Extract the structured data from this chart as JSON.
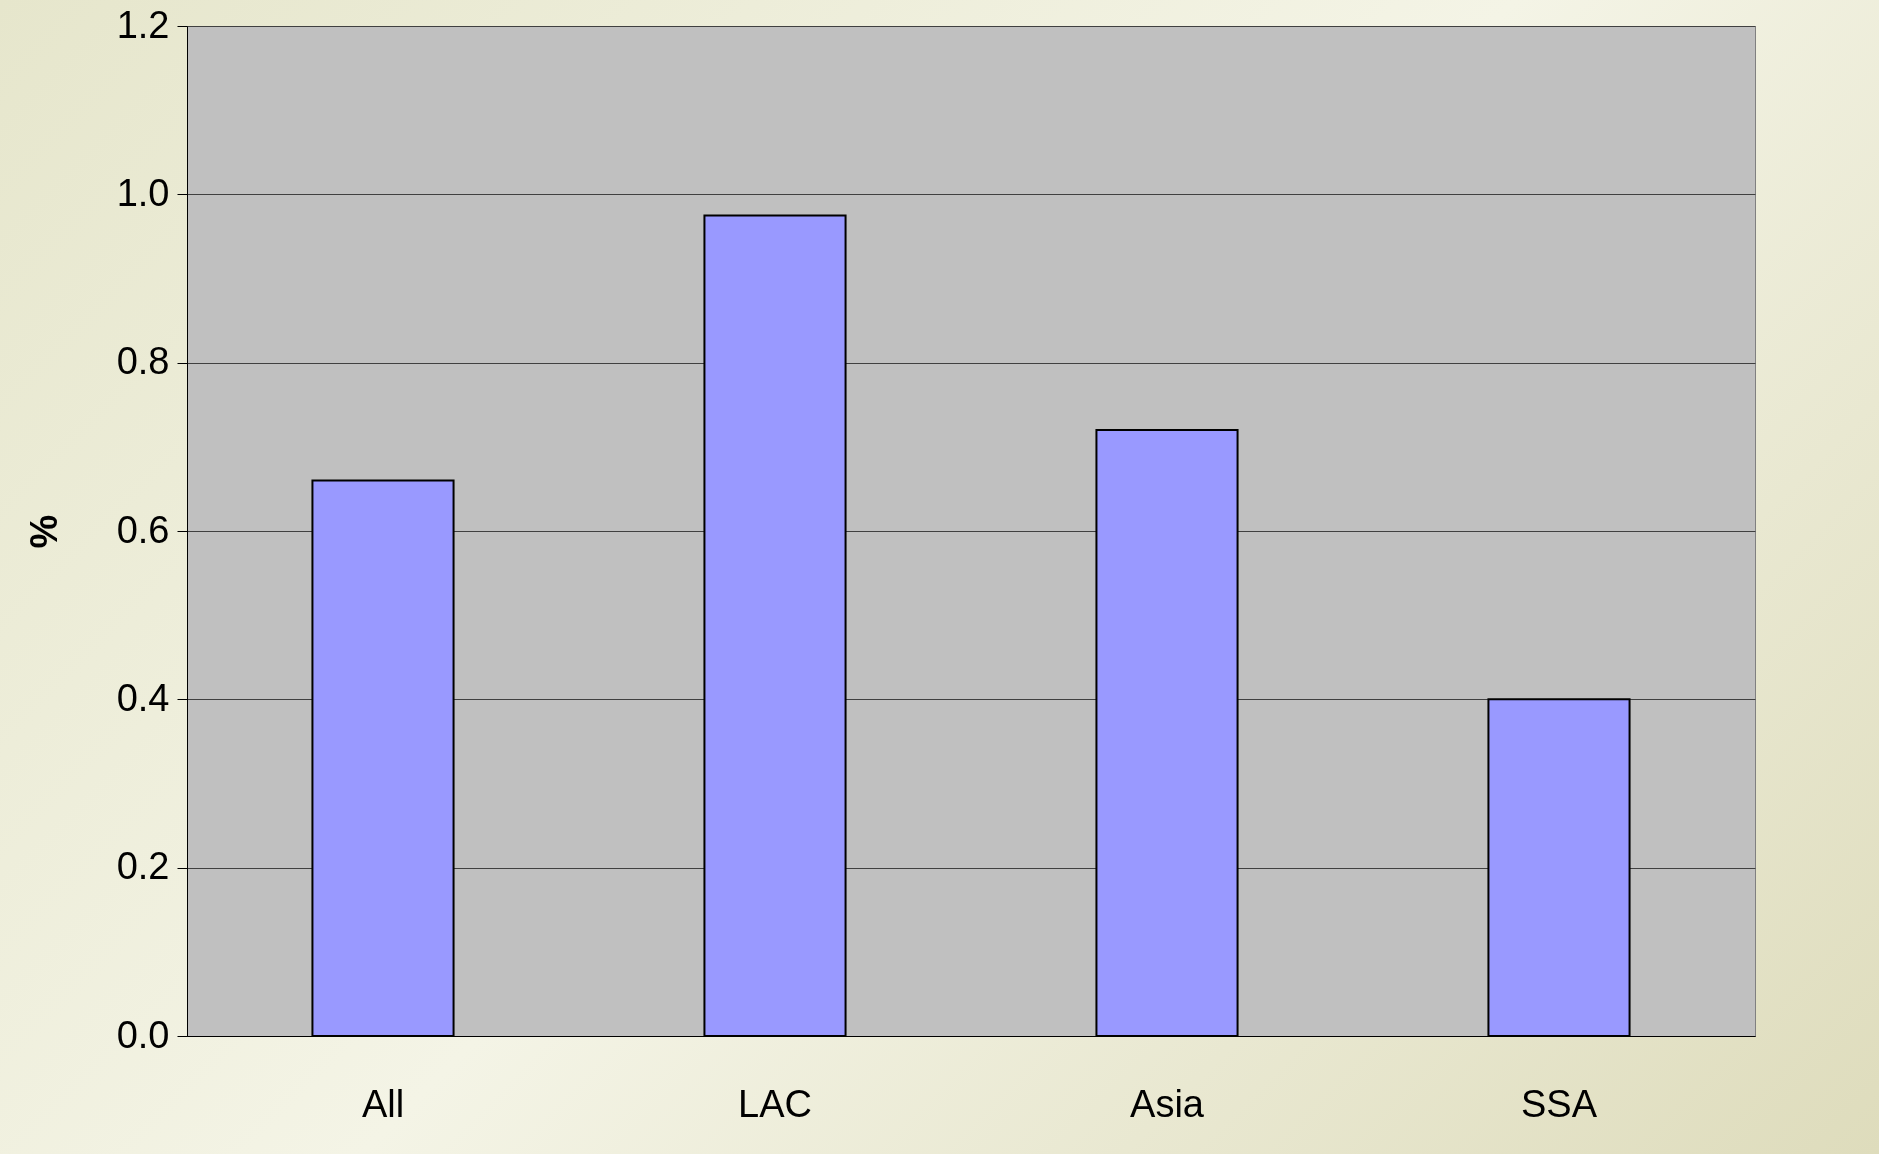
{
  "chart_data": {
    "type": "bar",
    "ylabel": "%",
    "categories": [
      "All",
      "LAC",
      "Asia",
      "SSA"
    ],
    "values": [
      0.66,
      0.975,
      0.72,
      0.4
    ],
    "color": "#9999ff",
    "ylim": [
      0,
      1.2
    ],
    "yticks": [
      {
        "value": 0,
        "label": "0.0"
      },
      {
        "value": 0.2,
        "label": "0.2"
      },
      {
        "value": 0.4,
        "label": "0.4"
      },
      {
        "value": 0.6,
        "label": "0.6"
      },
      {
        "value": 0.8,
        "label": "0.8"
      },
      {
        "value": 1.0,
        "label": "1.0"
      },
      {
        "value": 1.2,
        "label": "1.2"
      }
    ],
    "grid": "y"
  }
}
